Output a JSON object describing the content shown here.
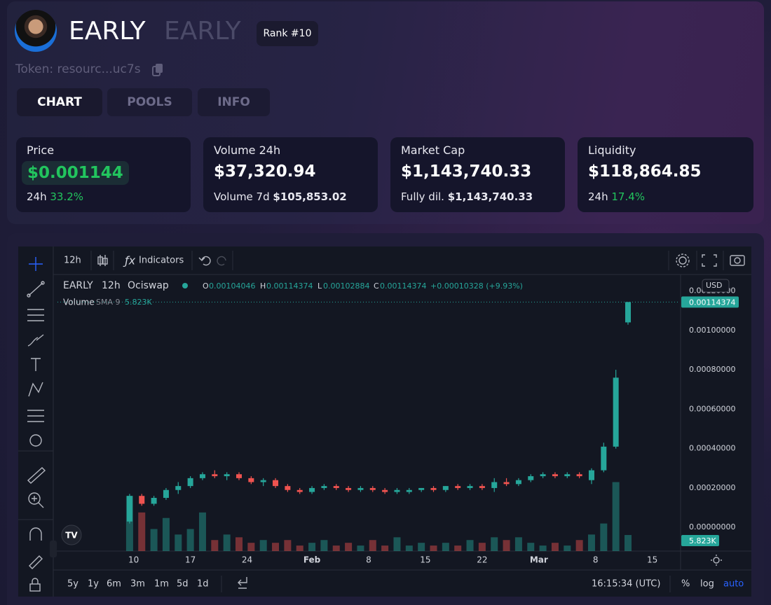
{
  "header": {
    "title": "EARLY",
    "symbol": "EARLY",
    "rank": "Rank #10",
    "token": "Token: resourc...uc7s"
  },
  "tabs": [
    "CHART",
    "POOLS",
    "INFO"
  ],
  "stats": [
    {
      "label": "Price",
      "value": "$0.001144",
      "sub_label": "24h",
      "sub_value": "33.2%"
    },
    {
      "label": "Volume 24h",
      "value": "$37,320.94",
      "sub_label": "Volume 7d",
      "sub_value": "$105,853.02"
    },
    {
      "label": "Market Cap",
      "value": "$1,143,740.33",
      "sub_label": "Fully dil.",
      "sub_value": "$1,143,740.33"
    },
    {
      "label": "Liquidity",
      "value": "$118,864.85",
      "sub_label": "24h",
      "sub_value": "17.4%"
    }
  ],
  "toolbar": {
    "interval": "12h",
    "indicators": "Indicators",
    "currency": "USD"
  },
  "bottom_bar": {
    "ranges": [
      "5y",
      "1y",
      "6m",
      "3m",
      "1m",
      "5d",
      "1d"
    ],
    "time": "16:15:34 (UTC)",
    "options": [
      "%",
      "log",
      "auto"
    ]
  },
  "chart_data": {
    "type": "candlestick",
    "symbol": "EARLY",
    "interval": "12h",
    "exchange": "Ociswap",
    "ohlc_letters": [
      "O",
      "H",
      "L",
      "C"
    ],
    "change": "+0.00010328 (+9.93%)",
    "volume_name": "Volume",
    "volume_indicator": "SMA 9",
    "volume_label": "5.823K",
    "up_color": "#26a69a",
    "down_color": "#ef5350",
    "x": [
      -0.5,
      1,
      2.5,
      4,
      5.5,
      7,
      8.5,
      10,
      11.5,
      13,
      14.5,
      16,
      17.5,
      19,
      20.5,
      22,
      23.5,
      25,
      26.5,
      28,
      29.5,
      31,
      32.5,
      34,
      35.5,
      37,
      38.5,
      40,
      41.5,
      43,
      44.5,
      46,
      47.5,
      49,
      50.5,
      52,
      53.5,
      55,
      56.5,
      58,
      59.5,
      61
    ],
    "open": [
      3e-05,
      0.00016,
      0.00012,
      0.00015,
      0.00019,
      0.00021,
      0.00025,
      0.00027,
      0.00026,
      0.00027,
      0.00025,
      0.00023,
      0.00024,
      0.00021,
      0.00019,
      0.00018,
      0.0002,
      0.00021,
      0.0002,
      0.00019,
      0.0002,
      0.00019,
      0.00018,
      0.00018,
      0.00019,
      0.0002,
      0.00019,
      0.00021,
      0.0002,
      0.00021,
      0.0002,
      0.00023,
      0.00022,
      0.00024,
      0.00026,
      0.00027,
      0.00026,
      0.00027,
      0.00024,
      0.00029,
      0.00041,
      0.00104046
    ],
    "high": [
      0.00017,
      0.00017,
      0.00016,
      0.0002,
      0.00023,
      0.00026,
      0.00028,
      0.00029,
      0.00028,
      0.00028,
      0.00026,
      0.00025,
      0.00025,
      0.00022,
      0.0002,
      0.00021,
      0.00022,
      0.00022,
      0.00021,
      0.00021,
      0.00021,
      0.0002,
      0.0002,
      0.0002,
      0.0002,
      0.00021,
      0.00021,
      0.00022,
      0.00022,
      0.00022,
      0.00025,
      0.00025,
      0.00025,
      0.00027,
      0.00028,
      0.00028,
      0.00028,
      0.00028,
      0.0003,
      0.00043,
      0.0008,
      0.00114374
    ],
    "low": [
      2e-05,
      0.00011,
      0.00011,
      0.00014,
      0.00017,
      0.0002,
      0.00024,
      0.00025,
      0.00024,
      0.00024,
      0.00022,
      0.00021,
      0.0002,
      0.00018,
      0.00017,
      0.00017,
      0.00019,
      0.00019,
      0.00018,
      0.00018,
      0.00018,
      0.00017,
      0.00017,
      0.00017,
      0.00018,
      0.00018,
      0.00018,
      0.00019,
      0.00019,
      0.00019,
      0.00018,
      0.00021,
      0.00021,
      0.00023,
      0.00025,
      0.00025,
      0.00025,
      0.00025,
      0.00022,
      0.00028,
      0.0004,
      0.00102884
    ],
    "close": [
      0.00016,
      0.00012,
      0.00015,
      0.00019,
      0.00021,
      0.00025,
      0.00027,
      0.00026,
      0.00027,
      0.00025,
      0.00023,
      0.00024,
      0.00021,
      0.00019,
      0.00018,
      0.0002,
      0.00021,
      0.0002,
      0.00019,
      0.0002,
      0.00019,
      0.00018,
      0.00019,
      0.00019,
      0.0002,
      0.00019,
      0.00021,
      0.0002,
      0.00021,
      0.0002,
      0.00023,
      0.00022,
      0.00024,
      0.00026,
      0.00027,
      0.00026,
      0.00027,
      0.00026,
      0.00029,
      0.00041,
      0.00076,
      0.00114374
    ],
    "volume": [
      20,
      14,
      8,
      12,
      6,
      8,
      14,
      4,
      6,
      5,
      3,
      4,
      3,
      4,
      2,
      3,
      4,
      2,
      3,
      2,
      4,
      2,
      5,
      2,
      3,
      2,
      3,
      2,
      4,
      3,
      5,
      4,
      5,
      3,
      2,
      3,
      2,
      4,
      6,
      10,
      25,
      5.823
    ],
    "volume_ylim": [
      0,
      100
    ],
    "xlim": [
      -9.4,
      67.4
    ],
    "xticks": [
      {
        "value": 0,
        "label": "10"
      },
      {
        "value": 7,
        "label": "17"
      },
      {
        "value": 14,
        "label": "24"
      },
      {
        "value": 22,
        "label": "Feb"
      },
      {
        "value": 29,
        "label": "8"
      },
      {
        "value": 36,
        "label": "15"
      },
      {
        "value": 43,
        "label": "22"
      },
      {
        "value": 50,
        "label": "Mar"
      },
      {
        "value": 57,
        "label": "8"
      },
      {
        "value": 64,
        "label": "15"
      }
    ],
    "ylim": [
      -0.00012,
      0.00128
    ],
    "yticks": [
      {
        "value": 0,
        "label": "0.00000000"
      },
      {
        "value": 0.0002,
        "label": "0.00020000"
      },
      {
        "value": 0.0004,
        "label": "0.00040000"
      },
      {
        "value": 0.0006,
        "label": "0.00060000"
      },
      {
        "value": 0.0008,
        "label": "0.00080000"
      },
      {
        "value": 0.001,
        "label": "0.00100000"
      },
      {
        "value": 0.0012,
        "label": "0.00120000"
      }
    ],
    "grid": false
  }
}
